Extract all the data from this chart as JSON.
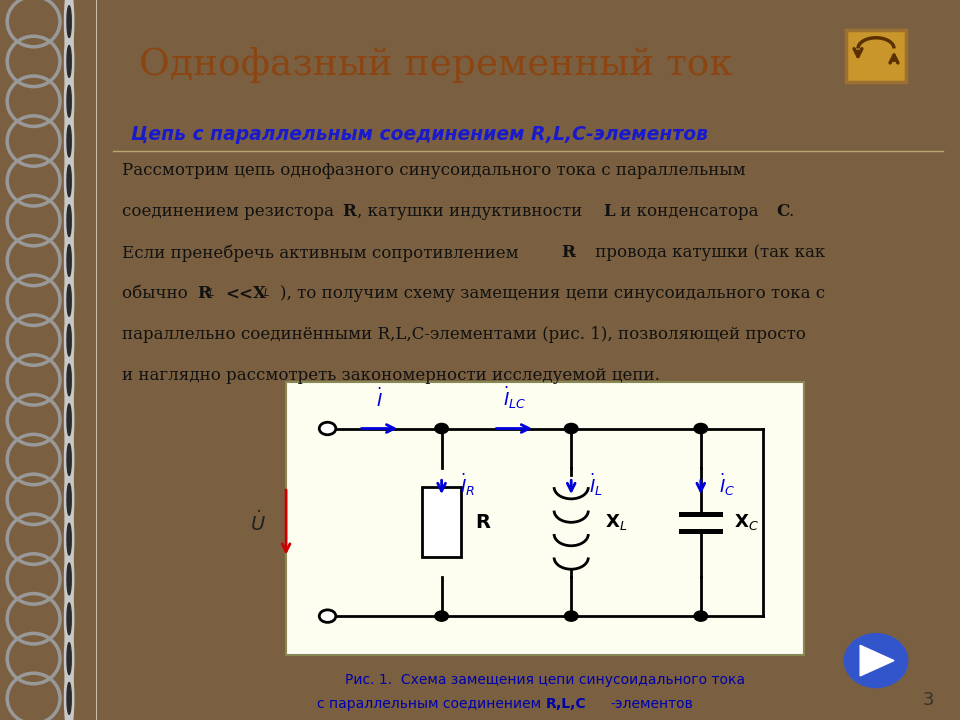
{
  "bg_color": "#7a6040",
  "slide_bg": "#f5f0dc",
  "title": "Однофазный переменный ток",
  "title_color": "#8B4513",
  "subtitle": "Цепь с параллельным соединением R,L,C-элементов",
  "subtitle_color": "#1a1acd",
  "fig_caption_line1": "Рис. 1.  Схема замещения цепи синусоидального тока",
  "fig_caption_line2": "с параллельным соединением ",
  "fig_caption_bold": "R,L,C",
  "fig_caption_end": "-элементов",
  "page_number": "3",
  "circuit_bg": "#fdfdf0",
  "circuit_border": "#888855",
  "wire_color": "#000000",
  "arrow_color": "#0000dd",
  "voltage_arrow_color": "#cc0000",
  "spiral_bg": "#7a6040",
  "spiral_color": "#aaaaaa",
  "spiral_dark": "#555555"
}
